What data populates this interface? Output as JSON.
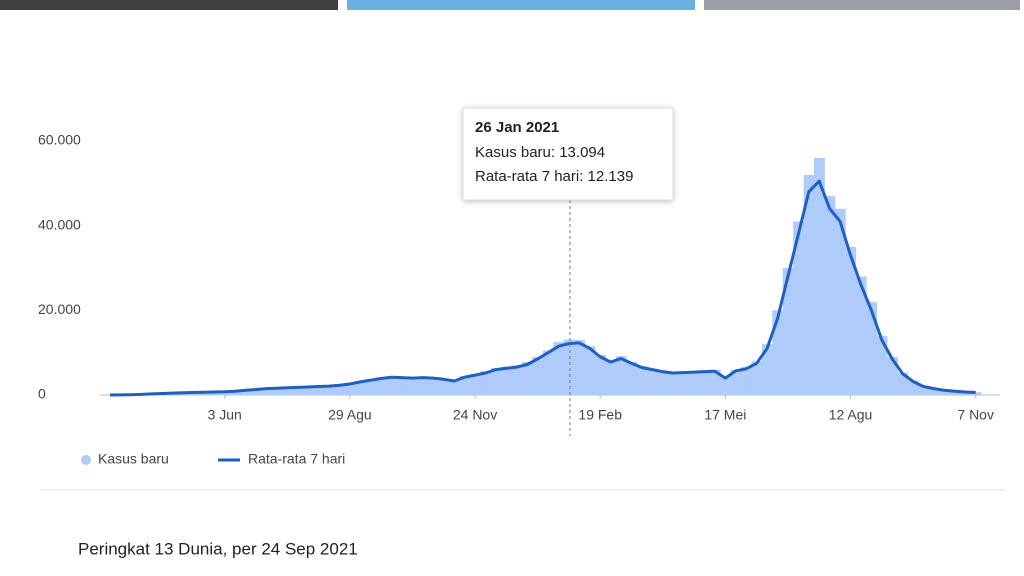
{
  "chart_data": {
    "type": "bar-line",
    "categories": [
      null,
      null,
      null,
      null,
      null,
      null,
      null,
      null,
      null,
      null,
      null,
      "3 Jun",
      null,
      null,
      null,
      null,
      null,
      null,
      null,
      null,
      null,
      null,
      null,
      "29 Agu",
      null,
      null,
      null,
      null,
      null,
      null,
      null,
      null,
      null,
      null,
      null,
      "24 Nov",
      null,
      null,
      null,
      null,
      null,
      null,
      null,
      null,
      null,
      null,
      null,
      "19 Feb",
      null,
      null,
      null,
      null,
      null,
      null,
      null,
      null,
      null,
      null,
      null,
      "17 Mei",
      null,
      null,
      null,
      null,
      null,
      null,
      null,
      null,
      null,
      null,
      null,
      "12 Agu",
      null,
      null,
      null,
      null,
      null,
      null,
      null,
      null,
      null,
      null,
      null,
      "7 Nov"
    ],
    "series": [
      {
        "name": "Kasus baru",
        "color": "#aecbfa",
        "values": [
          0,
          30,
          100,
          200,
          300,
          400,
          500,
          600,
          650,
          700,
          750,
          800,
          1000,
          1200,
          1400,
          1600,
          1700,
          1800,
          1900,
          2000,
          2100,
          2300,
          2500,
          2900,
          3300,
          3800,
          4200,
          4400,
          4300,
          4200,
          4300,
          4100,
          3900,
          3500,
          4500,
          5000,
          5600,
          6400,
          6700,
          7000,
          7800,
          9000,
          10500,
          12500,
          13094,
          13000,
          11500,
          9500,
          8000,
          9200,
          7800,
          6800,
          6200,
          5800,
          5400,
          5600,
          5700,
          5900,
          6000,
          4300,
          6000,
          6600,
          8000,
          12000,
          20000,
          30000,
          41000,
          52000,
          56000,
          47000,
          44000,
          35000,
          28000,
          22000,
          14000,
          9000,
          5300,
          3400,
          2200,
          1600,
          1200,
          950,
          750,
          650
        ]
      },
      {
        "name": "Rata-rata 7 hari",
        "color": "#1f5fbf",
        "values": [
          0,
          20,
          80,
          150,
          250,
          350,
          450,
          550,
          600,
          650,
          700,
          750,
          900,
          1100,
          1300,
          1500,
          1600,
          1700,
          1800,
          1900,
          2000,
          2100,
          2300,
          2600,
          3100,
          3500,
          3900,
          4200,
          4100,
          4000,
          4100,
          4000,
          3700,
          3300,
          4200,
          4700,
          5200,
          6000,
          6300,
          6600,
          7200,
          8500,
          10000,
          11500,
          12139,
          12300,
          11000,
          9000,
          7800,
          8600,
          7500,
          6500,
          6000,
          5500,
          5200,
          5300,
          5400,
          5500,
          5600,
          4000,
          5700,
          6200,
          7500,
          11000,
          18000,
          28000,
          38000,
          48000,
          50500,
          44000,
          41000,
          33000,
          26000,
          20000,
          13000,
          8500,
          5000,
          3200,
          2000,
          1500,
          1100,
          900,
          700,
          600
        ]
      }
    ],
    "ylim": [
      0,
      60000
    ],
    "yticks": [
      0,
      {
        "value": 20000,
        "label": "20.000"
      },
      {
        "value": 40000,
        "label": "40.000"
      },
      {
        "value": 60000,
        "label": "60.000"
      }
    ],
    "tooltip": {
      "title": "26 Jan 2021",
      "lines": [
        "Kasus baru: 13.094",
        "Rata-rata 7 hari: 12.139"
      ]
    }
  },
  "footer": "Peringkat 13 Dunia, per 24 Sep 2021"
}
